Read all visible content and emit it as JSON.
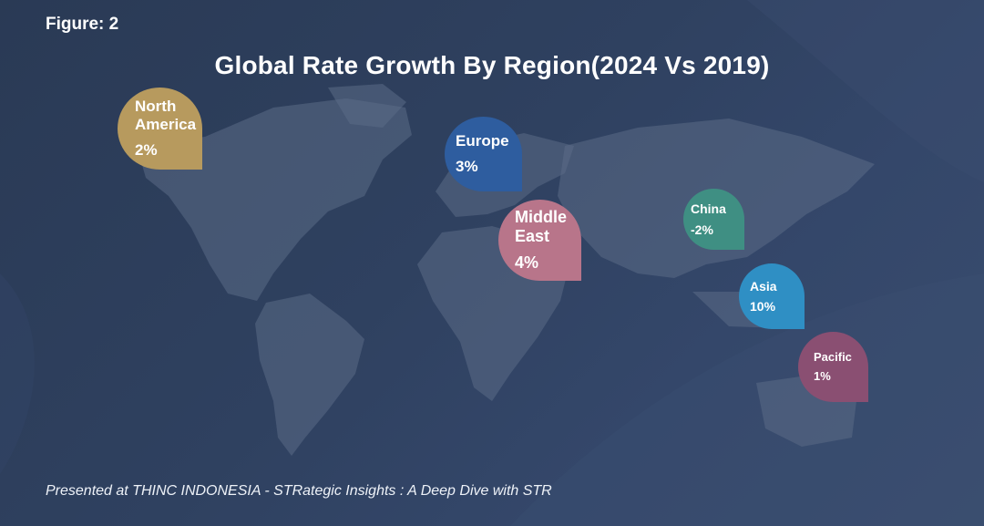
{
  "figure_label": "Figure: 2",
  "caption": "Presented at THINC INDONESIA -  STRategic Insights : A Deep Dive with STR",
  "chart_data": {
    "type": "map-bubble",
    "title": "Global Rate Growth By Region(2024 Vs 2019)",
    "unit": "%",
    "categories": [
      "North America",
      "Europe",
      "Middle East",
      "China",
      "Asia",
      "Pacific"
    ],
    "values": [
      2,
      3,
      4,
      -2,
      10,
      1
    ],
    "labels": [
      {
        "region": "North America",
        "display": "2%",
        "color": "#b79a5e"
      },
      {
        "region": "Europe",
        "display": "3%",
        "color": "#2e5d9f"
      },
      {
        "region": "Middle East",
        "display": "4%",
        "color": "#b8758a"
      },
      {
        "region": "China",
        "display": "-2%",
        "color": "#3f8f83"
      },
      {
        "region": "Asia",
        "display": "10%",
        "color": "#2f8fc4"
      },
      {
        "region": "Pacific",
        "display": "1%",
        "color": "#8a4f72"
      }
    ]
  }
}
